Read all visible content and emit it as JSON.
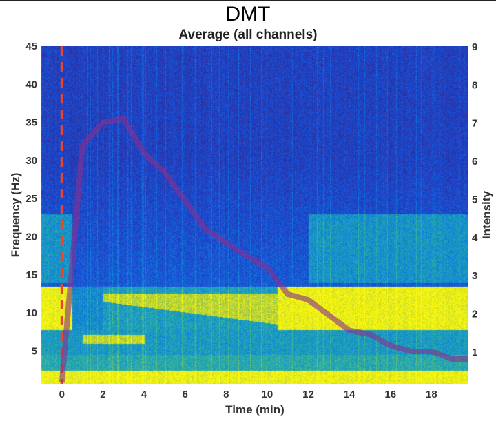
{
  "chart_data": {
    "type": "heatmap",
    "title": "DMT",
    "subtitle": "Average (all channels)",
    "xlabel": "Time (min)",
    "ylabel": "Frequency (Hz)",
    "y2label": "Intensity",
    "xlim": [
      -1,
      19.8
    ],
    "ylim": [
      0.7,
      45
    ],
    "y2lim": [
      0.15,
      9
    ],
    "xticks": [
      0,
      2,
      4,
      6,
      8,
      10,
      12,
      14,
      16,
      18
    ],
    "yticks": [
      5,
      10,
      15,
      20,
      25,
      30,
      35,
      40,
      45
    ],
    "y2ticks": [
      1,
      2,
      3,
      4,
      5,
      6,
      7,
      8,
      9
    ],
    "colormap": "parula",
    "marker_line": {
      "x": 0,
      "style": "dashed",
      "color": "#e8452c"
    },
    "intensity_series": {
      "axis": "right",
      "color": "#8a2f8f",
      "x": [
        0,
        1,
        2,
        3,
        4,
        5,
        6,
        7,
        8,
        9,
        10,
        11,
        12,
        13,
        14,
        15,
        16,
        17,
        18,
        19,
        19.8
      ],
      "y": [
        0.18,
        6.4,
        7.0,
        7.1,
        6.2,
        5.7,
        4.95,
        4.2,
        3.85,
        3.5,
        3.2,
        2.5,
        2.35,
        1.95,
        1.55,
        1.45,
        1.15,
        1.0,
        1.0,
        0.8,
        0.8
      ]
    },
    "spectrogram_features": [
      {
        "band_hz": [
          0.7,
          2.5
        ],
        "time": "all",
        "level": "high"
      },
      {
        "band_hz": [
          8,
          13
        ],
        "time": "before 0.5 and after 10",
        "level": "high"
      },
      {
        "band_hz": [
          10,
          12
        ],
        "time": "2 to 10",
        "level": "medium-high"
      },
      {
        "band_hz": [
          6,
          7
        ],
        "time": "1 to 4",
        "level": "medium-high"
      },
      {
        "band_hz": [
          15,
          22
        ],
        "time": "before 0.5 and after 12",
        "level": "medium"
      }
    ],
    "grid": false
  }
}
